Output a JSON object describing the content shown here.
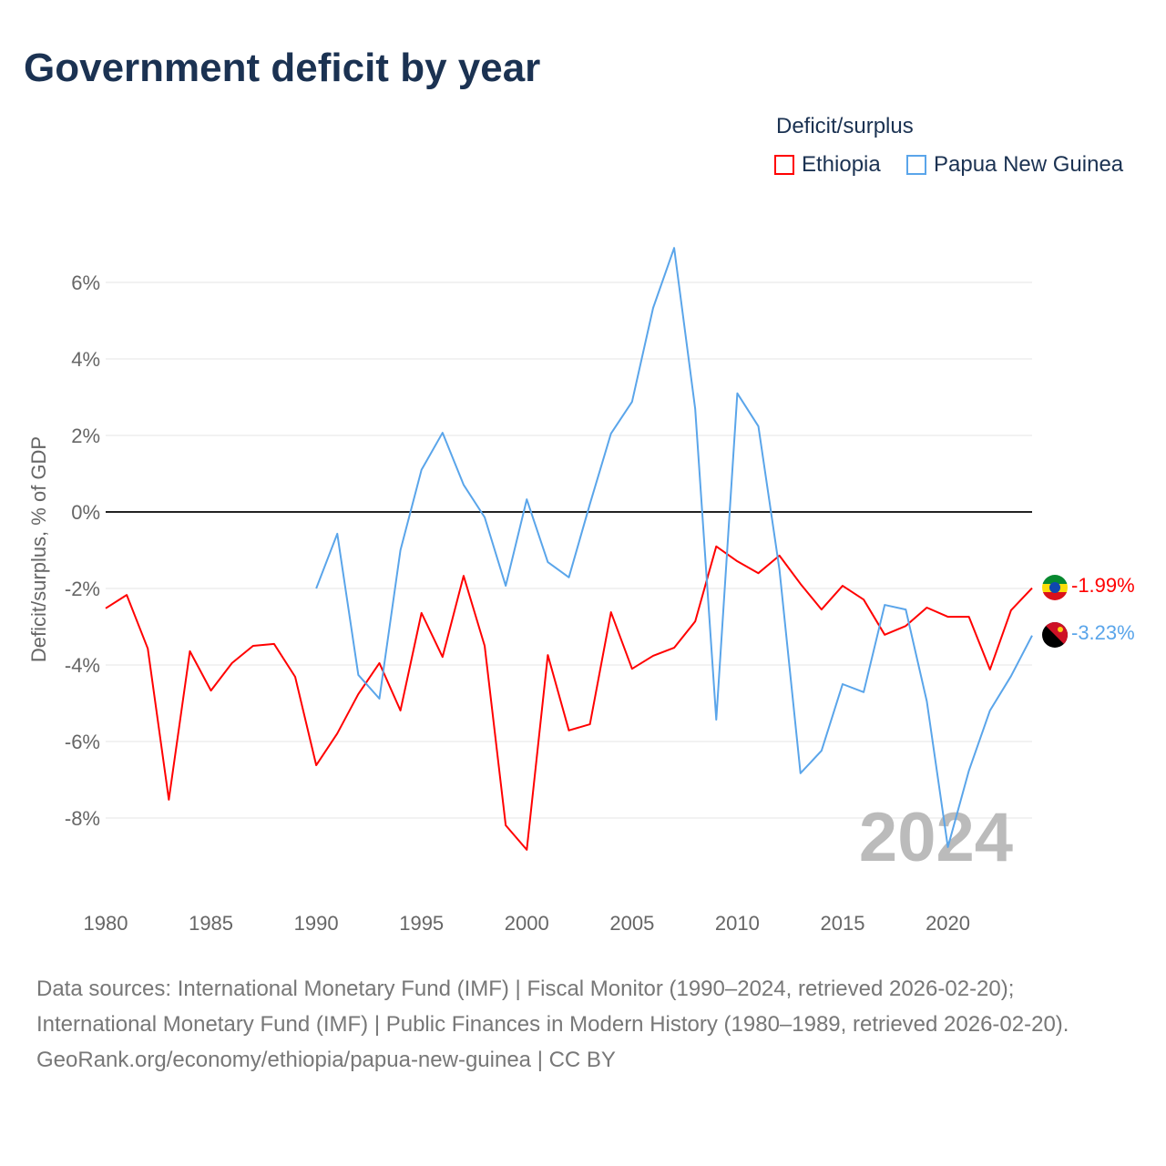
{
  "title": "Government deficit by year",
  "legend": {
    "title": "Deficit/surplus",
    "items": [
      {
        "label": "Ethiopia",
        "color": "#ff0000"
      },
      {
        "label": "Papua New Guinea",
        "color": "#5aa5ea"
      }
    ]
  },
  "watermark_year": "2024",
  "end_labels": {
    "ethiopia": "-1.99%",
    "png": "-3.23%"
  },
  "footer": {
    "sources": "Data sources: International Monetary Fund (IMF) | Fiscal Monitor (1990–2024, retrieved 2026-02-20); International Monetary Fund (IMF) | Public Finances in Modern History (1980–1989, retrieved 2026-02-20).",
    "credit": "GeoRank.org/economy/ethiopia/papua-new-guinea | CC BY"
  },
  "chart_data": {
    "type": "line",
    "title": "Government deficit by year",
    "xlabel": "",
    "ylabel": "Deficit/surplus, % of GDP",
    "xlim": [
      1980,
      2024
    ],
    "ylim": [
      -10,
      7
    ],
    "xticks": [
      1980,
      1985,
      1990,
      1995,
      2000,
      2005,
      2010,
      2015,
      2020
    ],
    "yticks": [
      -8,
      -6,
      -4,
      -2,
      0,
      2,
      4,
      6
    ],
    "ytick_labels": [
      "-8%",
      "-6%",
      "-4%",
      "-2%",
      "0%",
      "2%",
      "4%",
      "6%"
    ],
    "grid": true,
    "legend_position": "top-right",
    "series": [
      {
        "name": "Ethiopia",
        "color": "#ff0000",
        "start": 1980,
        "values": [
          -2.52,
          -2.17,
          -3.57,
          -7.52,
          -3.64,
          -4.67,
          -3.95,
          -3.5,
          -3.45,
          -4.31,
          -6.62,
          -5.79,
          -4.76,
          -3.95,
          -5.19,
          -2.64,
          -3.79,
          -1.67,
          -3.5,
          -8.19,
          -8.83,
          -3.74,
          -5.71,
          -5.55,
          -2.62,
          -4.1,
          -3.76,
          -3.55,
          -2.86,
          -0.9,
          -1.29,
          -1.6,
          -1.14,
          -1.88,
          -2.55,
          -1.93,
          -2.29,
          -3.21,
          -2.98,
          -2.5,
          -2.74,
          -2.74,
          -4.12,
          -2.57,
          -1.99
        ]
      },
      {
        "name": "Papua New Guinea",
        "color": "#5aa5ea",
        "start": 1990,
        "values": [
          -2.0,
          -0.57,
          -4.26,
          -4.88,
          -1.0,
          1.1,
          2.07,
          0.71,
          -0.14,
          -1.93,
          0.33,
          -1.31,
          -1.71,
          0.21,
          2.05,
          2.88,
          5.33,
          6.9,
          2.69,
          -5.43,
          3.1,
          2.24,
          -1.5,
          -6.83,
          -6.24,
          -4.5,
          -4.71,
          -2.43,
          -2.55,
          -4.95,
          -8.76,
          -6.76,
          -5.19,
          -4.29,
          -3.23
        ]
      }
    ]
  }
}
